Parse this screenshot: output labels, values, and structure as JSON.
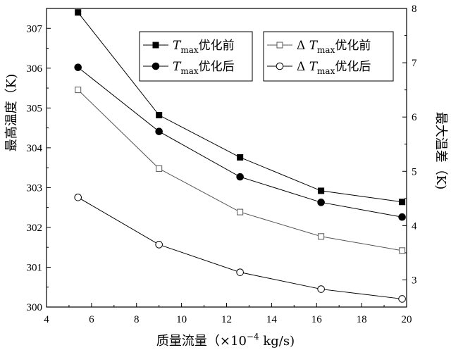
{
  "chart_data": {
    "type": "line",
    "xlabel": "质量流量（×10",
    "xlabel_exp": "−4",
    "xlabel_unit": " kg/s)",
    "ylabel_left": "最高温度（K)",
    "ylabel_right": "最大温差（K)",
    "xlim": [
      4,
      20
    ],
    "ylim_left": [
      300,
      307.5
    ],
    "ylim_right": [
      2.5,
      8
    ],
    "x_ticks": [
      "4",
      "6",
      "8",
      "10",
      "12",
      "14",
      "16",
      "18",
      "20"
    ],
    "y_left_ticks": [
      "300",
      "301",
      "302",
      "303",
      "304",
      "305",
      "306",
      "307"
    ],
    "y_right_ticks": [
      "3",
      "4",
      "5",
      "6",
      "7",
      "8"
    ],
    "x": [
      5.4,
      9.0,
      12.6,
      16.2,
      19.8
    ],
    "series": [
      {
        "name_main": "T",
        "name_sub": "max",
        "name_suffix": "优化前",
        "name_prefix": "",
        "axis": "left",
        "marker": "filled-square",
        "color": "#000000",
        "values": [
          307.4,
          304.82,
          303.76,
          302.92,
          302.64
        ]
      },
      {
        "name_main": "T",
        "name_sub": "max",
        "name_suffix": "优化后",
        "name_prefix": "",
        "axis": "left",
        "marker": "filled-circle",
        "color": "#000000",
        "values": [
          306.02,
          304.41,
          303.27,
          302.63,
          302.26
        ]
      },
      {
        "name_main": "T",
        "name_sub": "max",
        "name_suffix": "优化前",
        "name_prefix": "Δ ",
        "axis": "right",
        "marker": "open-square",
        "color": "#555555",
        "values": [
          6.5,
          5.05,
          4.25,
          3.8,
          3.54
        ]
      },
      {
        "name_main": "T",
        "name_sub": "max",
        "name_suffix": "优化后",
        "name_prefix": "Δ ",
        "axis": "right",
        "marker": "open-circle",
        "color": "#000000",
        "values": [
          4.52,
          3.65,
          3.14,
          2.83,
          2.65
        ]
      }
    ],
    "legend_left_position": "top-center",
    "legend_right_position": "top-right",
    "grid": false
  }
}
